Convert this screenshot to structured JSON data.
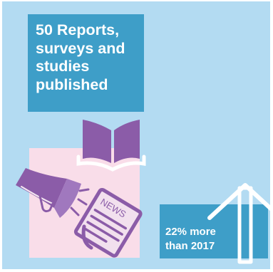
{
  "headline": {
    "lines": [
      "50 Reports,",
      "surveys and",
      "studies",
      "published"
    ]
  },
  "stat": {
    "lines": [
      "22% more",
      "than 2017"
    ]
  },
  "icons": {
    "book": "open-book-icon",
    "megaphone": "megaphone-icon",
    "newspaper": "newspaper-icon",
    "arrow": "up-arrow-icon",
    "news_label": "NEWS"
  },
  "colors": {
    "background": "#b3dbf2",
    "accent_blue": "#3e9ec8",
    "purple": "#8b5ca8",
    "pink": "#f9dde9",
    "white": "#ffffff"
  }
}
